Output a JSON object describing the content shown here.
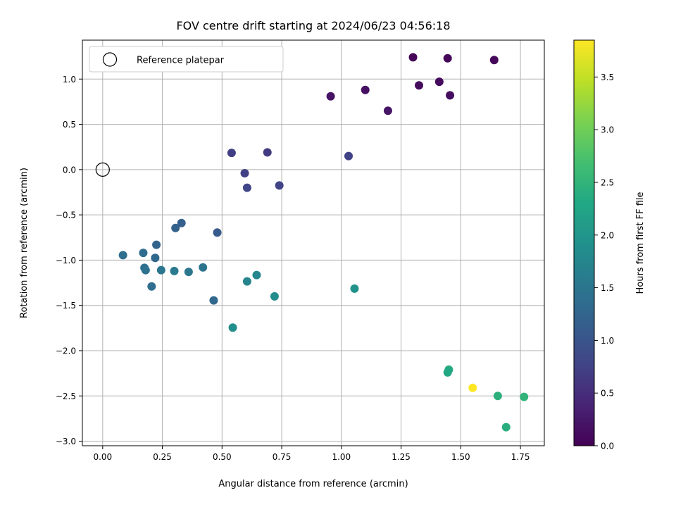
{
  "chart_data": {
    "type": "scatter",
    "title": "FOV centre drift starting at 2024/06/23 04:56:18",
    "xlabel": "Angular distance from reference (arcmin)",
    "ylabel": "Rotation from reference (arcmin)",
    "xlim": [
      -0.085,
      1.85
    ],
    "ylim": [
      -3.05,
      1.43
    ],
    "xticks": [
      0.0,
      0.25,
      0.5,
      0.75,
      1.0,
      1.25,
      1.5,
      1.75
    ],
    "xtick_labels": [
      "0.00",
      "0.25",
      "0.50",
      "0.75",
      "1.00",
      "1.25",
      "1.50",
      "1.75"
    ],
    "yticks": [
      1.0,
      0.5,
      0.0,
      -0.5,
      -1.0,
      -1.5,
      -2.0,
      -2.5,
      -3.0
    ],
    "ytick_labels": [
      "1.0",
      "0.5",
      "0.0",
      "−0.5",
      "−1.0",
      "−1.5",
      "−2.0",
      "−2.5",
      "−3.0"
    ],
    "grid": true,
    "legend": {
      "placement": "top-left",
      "entries": [
        "Reference platepar"
      ]
    },
    "reference_point": {
      "x": 0.0,
      "y": 0.0
    },
    "colorbar": {
      "label": "Hours from first FF file",
      "range": [
        0.0,
        3.85
      ],
      "ticks": [
        0.0,
        0.5,
        1.0,
        1.5,
        2.0,
        2.5,
        3.0,
        3.5
      ],
      "tick_labels": [
        "0.0",
        "0.5",
        "1.0",
        "1.5",
        "2.0",
        "2.5",
        "3.0",
        "3.5"
      ],
      "colormap": "viridis"
    },
    "points": [
      {
        "x": 1.3,
        "y": 1.24,
        "c": 0.05
      },
      {
        "x": 1.445,
        "y": 1.23,
        "c": 0.07
      },
      {
        "x": 1.64,
        "y": 1.21,
        "c": 0.08
      },
      {
        "x": 1.41,
        "y": 0.97,
        "c": 0.1
      },
      {
        "x": 1.325,
        "y": 0.93,
        "c": 0.12
      },
      {
        "x": 1.1,
        "y": 0.88,
        "c": 0.15
      },
      {
        "x": 1.455,
        "y": 0.82,
        "c": 0.13
      },
      {
        "x": 0.955,
        "y": 0.81,
        "c": 0.2
      },
      {
        "x": 1.195,
        "y": 0.65,
        "c": 0.22
      },
      {
        "x": 0.54,
        "y": 0.185,
        "c": 0.7
      },
      {
        "x": 0.69,
        "y": 0.19,
        "c": 0.65
      },
      {
        "x": 1.03,
        "y": 0.15,
        "c": 0.75
      },
      {
        "x": 0.595,
        "y": -0.04,
        "c": 0.72
      },
      {
        "x": 0.605,
        "y": -0.2,
        "c": 0.8
      },
      {
        "x": 0.74,
        "y": -0.175,
        "c": 0.78
      },
      {
        "x": 0.33,
        "y": -0.59,
        "c": 1.15
      },
      {
        "x": 0.305,
        "y": -0.645,
        "c": 1.2
      },
      {
        "x": 0.48,
        "y": -0.695,
        "c": 1.1
      },
      {
        "x": 0.225,
        "y": -0.83,
        "c": 1.25
      },
      {
        "x": 0.085,
        "y": -0.945,
        "c": 1.4
      },
      {
        "x": 0.17,
        "y": -0.92,
        "c": 1.35
      },
      {
        "x": 0.22,
        "y": -0.975,
        "c": 1.3
      },
      {
        "x": 0.175,
        "y": -1.085,
        "c": 1.42
      },
      {
        "x": 0.18,
        "y": -1.11,
        "c": 1.45
      },
      {
        "x": 0.245,
        "y": -1.11,
        "c": 1.5
      },
      {
        "x": 0.3,
        "y": -1.12,
        "c": 1.55
      },
      {
        "x": 0.36,
        "y": -1.13,
        "c": 1.52
      },
      {
        "x": 0.42,
        "y": -1.08,
        "c": 1.48
      },
      {
        "x": 0.205,
        "y": -1.29,
        "c": 1.38
      },
      {
        "x": 0.465,
        "y": -1.445,
        "c": 1.3
      },
      {
        "x": 0.605,
        "y": -1.235,
        "c": 1.72
      },
      {
        "x": 0.645,
        "y": -1.165,
        "c": 1.75
      },
      {
        "x": 0.72,
        "y": -1.4,
        "c": 1.85
      },
      {
        "x": 1.055,
        "y": -1.315,
        "c": 1.95
      },
      {
        "x": 0.545,
        "y": -1.745,
        "c": 1.9
      },
      {
        "x": 1.45,
        "y": -2.21,
        "c": 2.35
      },
      {
        "x": 1.445,
        "y": -2.24,
        "c": 2.3
      },
      {
        "x": 1.55,
        "y": -2.41,
        "c": 3.85
      },
      {
        "x": 1.655,
        "y": -2.5,
        "c": 2.45
      },
      {
        "x": 1.765,
        "y": -2.51,
        "c": 2.5
      },
      {
        "x": 1.69,
        "y": -2.845,
        "c": 2.4
      }
    ]
  }
}
